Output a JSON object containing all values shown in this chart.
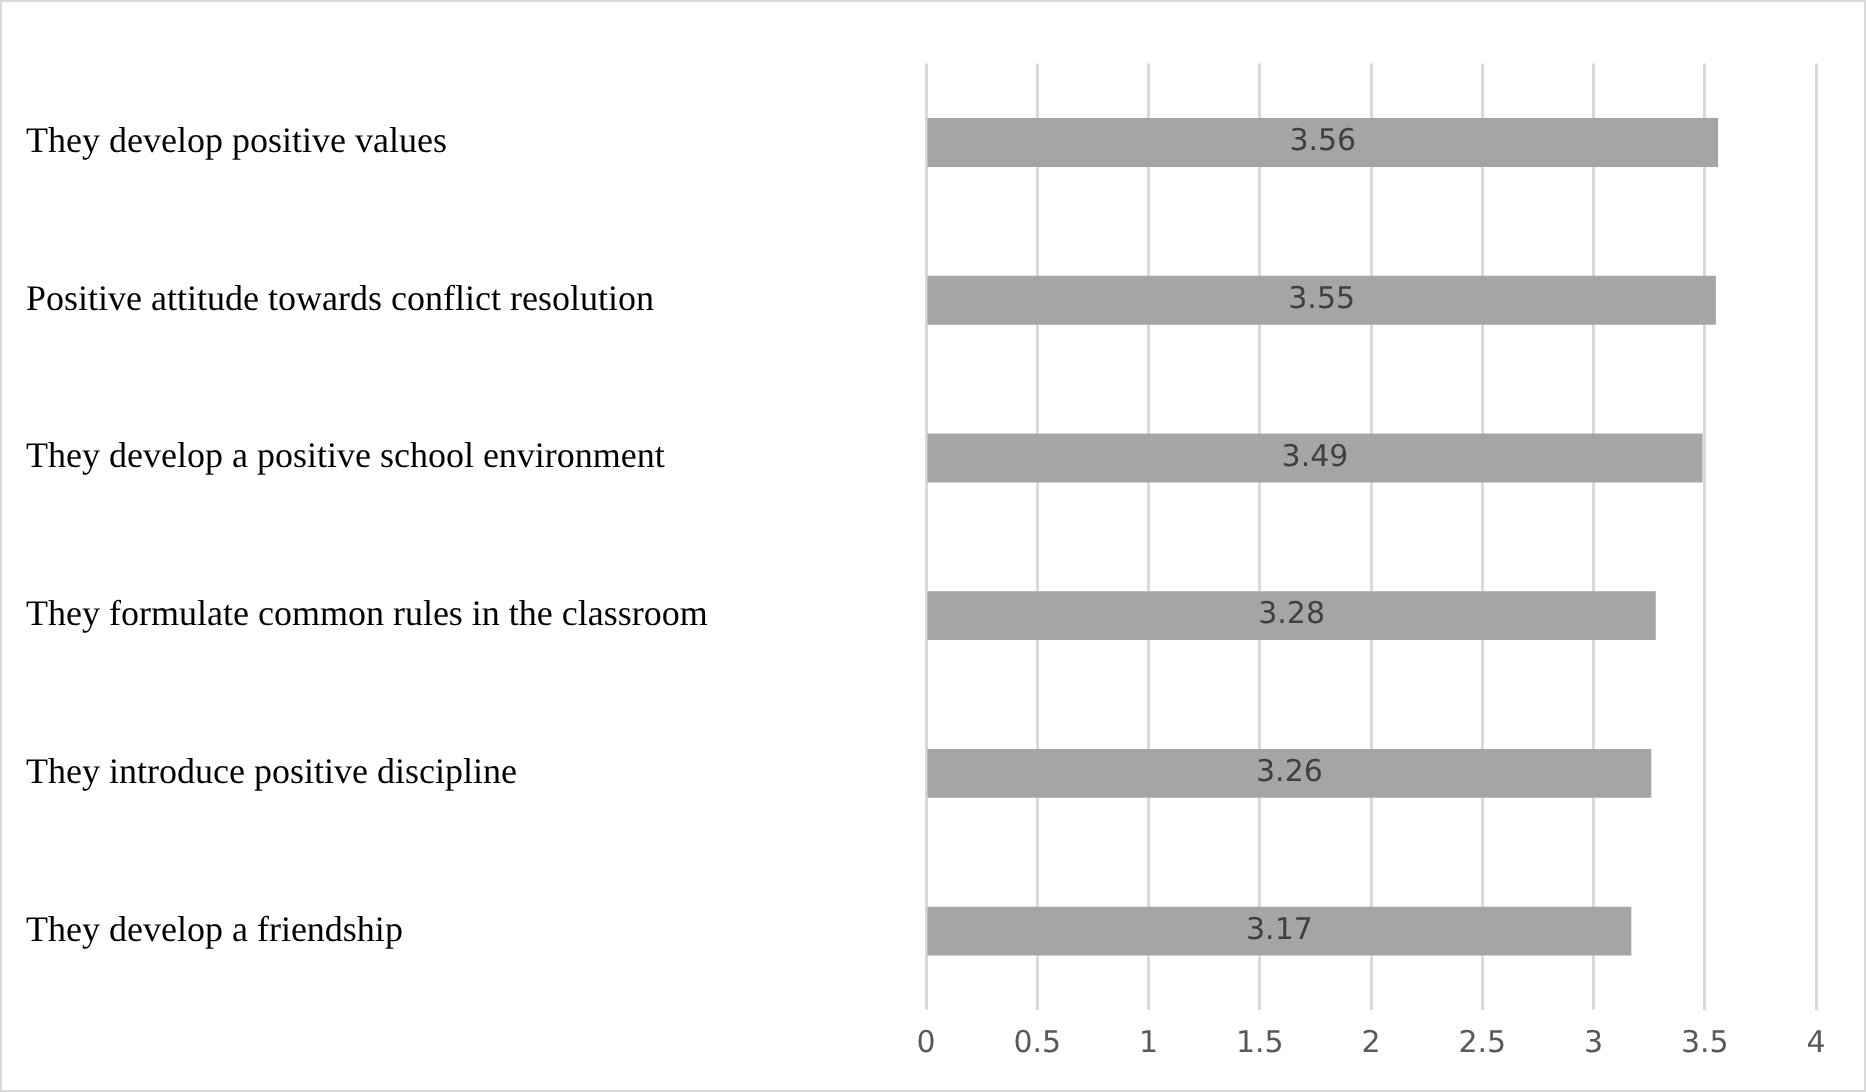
{
  "chart_data": {
    "type": "bar",
    "orientation": "horizontal",
    "categories": [
      "They develop positive values",
      "Positive attitude towards conflict resolution",
      "They develop a positive school environment",
      "They formulate common rules in the classroom",
      "They introduce positive discipline",
      "They develop a friendship"
    ],
    "values": [
      3.56,
      3.55,
      3.49,
      3.28,
      3.26,
      3.17
    ],
    "color": "#a5a5a5",
    "xlim": [
      0,
      4
    ],
    "xticks": [
      0,
      0.5,
      1,
      1.5,
      2,
      2.5,
      3,
      3.5,
      4
    ],
    "grid": "x",
    "data_labels": true,
    "legend": false
  }
}
